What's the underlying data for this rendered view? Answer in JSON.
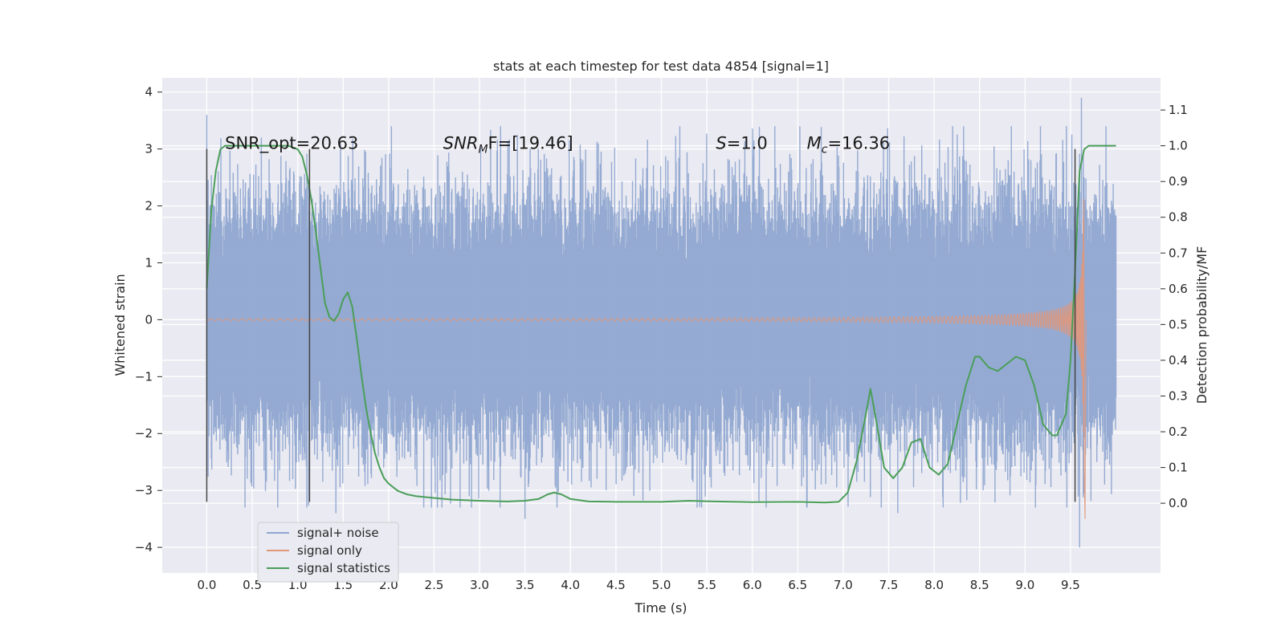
{
  "chart_data": {
    "type": "line",
    "title": "stats at each timestep for test data 4854 [signal=1]",
    "xlabel": "Time (s)",
    "ylabel": "Whitened strain",
    "y2label": "Detection probability/MF",
    "xlim": [
      -0.49,
      10.49
    ],
    "ylim": [
      -4.45,
      4.25
    ],
    "y2lim": [
      -0.195,
      1.19
    ],
    "x_ticks": [
      "0.0",
      "0.5",
      "1.0",
      "1.5",
      "2.0",
      "2.5",
      "3.0",
      "3.5",
      "4.0",
      "4.5",
      "5.0",
      "5.5",
      "6.0",
      "6.5",
      "7.0",
      "7.5",
      "8.0",
      "8.5",
      "9.0",
      "9.5"
    ],
    "y_ticks": [
      "−4",
      "−3",
      "−2",
      "−1",
      "0",
      "1",
      "2",
      "3",
      "4"
    ],
    "y2_ticks": [
      "0.0",
      "0.1",
      "0.2",
      "0.3",
      "0.4",
      "0.5",
      "0.6",
      "0.7",
      "0.8",
      "0.9",
      "1.0",
      "1.1"
    ],
    "grid": true,
    "legend_position": "lower-left",
    "annotations": [
      {
        "text": "SNR_opt=20.63",
        "x": 0.2,
        "y": 3.0
      },
      {
        "text": "SNR",
        "sub": "M",
        "suffix": "F=[19.46]",
        "x": 2.6,
        "y": 3.0
      },
      {
        "text": "S",
        "suffix": "=1.0",
        "x": 5.6,
        "y": 3.0
      },
      {
        "text": "M",
        "sub": "c",
        "suffix": "=16.36",
        "x": 6.6,
        "y": 3.0
      }
    ],
    "vlines": [
      {
        "x": 0.0,
        "y": [
          -3.2,
          3.0
        ]
      },
      {
        "x": 1.13,
        "y": [
          -3.2,
          3.0
        ]
      },
      {
        "x": 9.55,
        "y": [
          -3.2,
          3.0
        ]
      }
    ],
    "series": [
      {
        "name": "signal+ noise",
        "color": "#8fa6d0",
        "noise_range": [
          0.0,
          10.0
        ],
        "typical_amplitude": 1.6,
        "peaks": [
          [
            0.0,
            3.6
          ],
          [
            0.6,
            3.2
          ],
          [
            3.5,
            -3.5
          ],
          [
            9.62,
            3.9
          ],
          [
            9.6,
            -4.0
          ],
          [
            1.42,
            -3.4
          ],
          [
            7.6,
            -3.4
          ]
        ]
      },
      {
        "name": "signal only",
        "color": "#e0977a",
        "chirp_range": [
          0.0,
          9.65
        ],
        "peak_time": 9.65,
        "peak_amplitude": 3.6
      },
      {
        "name": "signal statistics",
        "color": "#4a9e59",
        "x": [
          0.0,
          0.05,
          0.1,
          0.15,
          0.2,
          0.3,
          0.4,
          0.5,
          0.7,
          0.9,
          1.0,
          1.05,
          1.1,
          1.15,
          1.2,
          1.25,
          1.3,
          1.35,
          1.4,
          1.45,
          1.5,
          1.55,
          1.6,
          1.65,
          1.7,
          1.75,
          1.8,
          1.85,
          1.9,
          1.95,
          2.0,
          2.1,
          2.2,
          2.3,
          2.5,
          2.7,
          3.0,
          3.3,
          3.5,
          3.65,
          3.75,
          3.82,
          3.9,
          4.0,
          4.2,
          4.5,
          5.0,
          5.3,
          5.6,
          6.0,
          6.5,
          6.8,
          6.95,
          7.05,
          7.15,
          7.25,
          7.3,
          7.35,
          7.45,
          7.55,
          7.65,
          7.75,
          7.85,
          7.95,
          8.05,
          8.15,
          8.25,
          8.35,
          8.45,
          8.5,
          8.6,
          8.7,
          8.8,
          8.9,
          9.0,
          9.1,
          9.2,
          9.3,
          9.35,
          9.45,
          9.5,
          9.55,
          9.6,
          9.65,
          9.7,
          9.8,
          10.0
        ],
        "y": [
          0.6,
          0.82,
          0.93,
          0.99,
          1.0,
          1.0,
          1.0,
          1.0,
          1.0,
          1.0,
          0.99,
          0.97,
          0.92,
          0.85,
          0.76,
          0.66,
          0.56,
          0.52,
          0.51,
          0.53,
          0.57,
          0.59,
          0.55,
          0.46,
          0.36,
          0.27,
          0.2,
          0.14,
          0.1,
          0.07,
          0.055,
          0.035,
          0.025,
          0.02,
          0.015,
          0.01,
          0.007,
          0.005,
          0.007,
          0.012,
          0.025,
          0.03,
          0.025,
          0.012,
          0.005,
          0.004,
          0.004,
          0.007,
          0.005,
          0.003,
          0.004,
          0.002,
          0.004,
          0.03,
          0.12,
          0.25,
          0.32,
          0.25,
          0.1,
          0.07,
          0.1,
          0.17,
          0.18,
          0.1,
          0.08,
          0.11,
          0.22,
          0.33,
          0.41,
          0.41,
          0.38,
          0.37,
          0.39,
          0.41,
          0.4,
          0.33,
          0.22,
          0.19,
          0.19,
          0.25,
          0.4,
          0.65,
          0.93,
          0.99,
          1.0,
          1.0,
          1.0
        ]
      }
    ]
  }
}
